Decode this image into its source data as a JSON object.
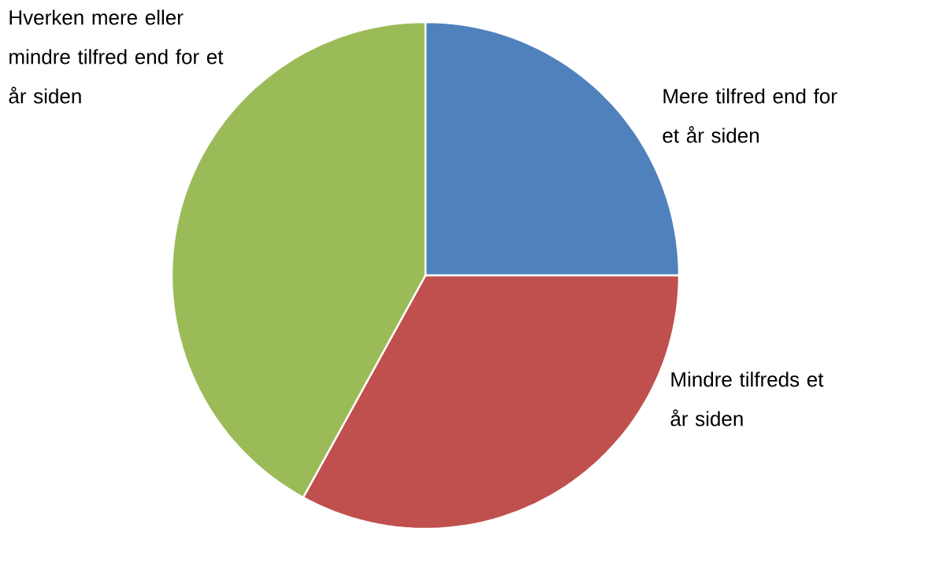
{
  "chart_data": {
    "type": "pie",
    "categories": [
      "Mere tilfred end for et år siden",
      "Mindre tilfreds et år siden",
      "Hverken mere eller mindre tilfred end for et år siden"
    ],
    "values": [
      25,
      33,
      42
    ],
    "colors": [
      "#4f81bd",
      "#c0504d",
      "#9bbb59"
    ]
  }
}
